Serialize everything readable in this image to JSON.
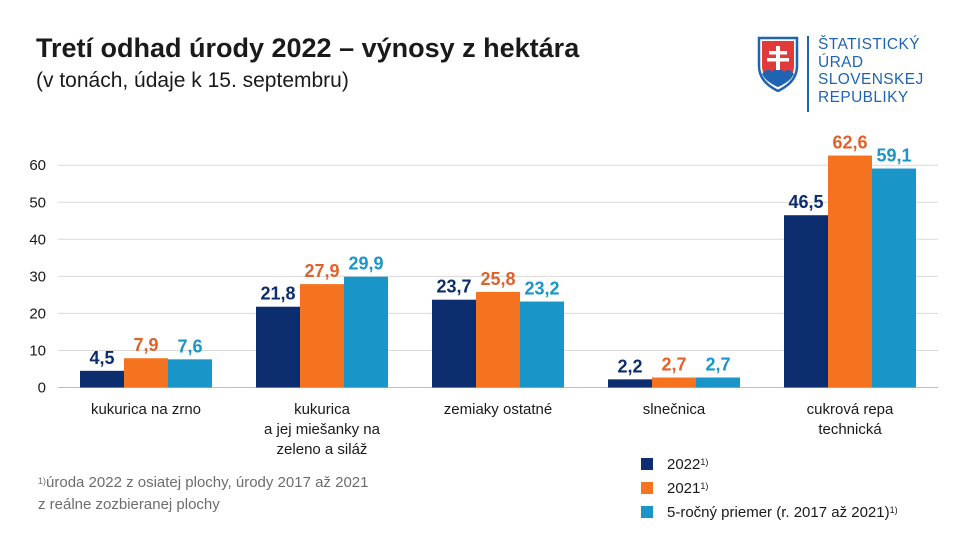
{
  "header": {
    "title": "Tretí odhad úrody 2022 – výnosy z hektára",
    "subtitle": "(v tonách, údaje k 15. septembru)"
  },
  "logo": {
    "lines": [
      "ŠTATISTICKÝ",
      "ÚRAD",
      "SLOVENSKEJ",
      "REPUBLIKY"
    ]
  },
  "footnote": {
    "marker": "1)",
    "line1": "úroda 2022 z osiatej plochy, úrody 2017 až 2021",
    "line2": "z reálne zozbieranej plochy"
  },
  "colors": {
    "s2022": "#0c2d6e",
    "s2021": "#f5731e",
    "s5yr": "#1995c8",
    "label2021": "#e0622a"
  },
  "chart_data": {
    "type": "bar",
    "title": "Tretí odhad úrody 2022 – výnosy z hektára",
    "ylim": [
      0,
      65
    ],
    "yticks": [
      "0",
      "10",
      "20",
      "30",
      "40",
      "50",
      "60"
    ],
    "grid": true,
    "legend_position": "bottom-right",
    "categories": [
      [
        "kukurica na zrno"
      ],
      [
        "kukurica",
        "a jej miešanky na",
        "zeleno a siláž"
      ],
      [
        "zemiaky ostatné"
      ],
      [
        "slnečnica"
      ],
      [
        "cukrová repa",
        "technická"
      ]
    ],
    "series": [
      {
        "name": "2022",
        "sup": "1)",
        "values": [
          4.5,
          21.8,
          23.7,
          2.2,
          46.5
        ],
        "labels": [
          "4,5",
          "21,8",
          "23,7",
          "2,2",
          "46,5"
        ]
      },
      {
        "name": "2021",
        "sup": "1)",
        "values": [
          7.9,
          27.9,
          25.8,
          2.7,
          62.6
        ],
        "labels": [
          "7,9",
          "27,9",
          "25,8",
          "2,7",
          "62,6"
        ]
      },
      {
        "name": "5-ročný priemer (r. 2017 až 2021)",
        "sup": "1)",
        "values": [
          7.6,
          29.9,
          23.2,
          2.7,
          59.1
        ],
        "labels": [
          "7,6",
          "29,9",
          "23,2",
          "2,7",
          "59,1"
        ]
      }
    ]
  }
}
